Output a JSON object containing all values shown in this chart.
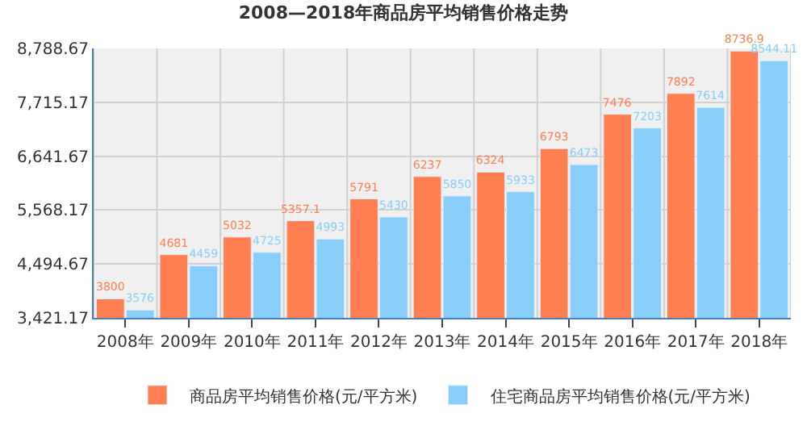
{
  "chart_data": {
    "type": "bar",
    "title": "2008—2018年商品房平均销售价格走势",
    "categories": [
      "2008年",
      "2009年",
      "2010年",
      "2011年",
      "2012年",
      "2013年",
      "2014年",
      "2015年",
      "2016年",
      "2017年",
      "2018年"
    ],
    "series": [
      {
        "name": "商品房平均销售价格(元/平方米)",
        "color": "#ff7f50",
        "values": [
          3800,
          4681,
          5032,
          5357.1,
          5791,
          6237,
          6324,
          6793,
          7476,
          7892,
          8736.9
        ]
      },
      {
        "name": "住宅商品房平均销售价格(元/平方米)",
        "color": "#87cefa",
        "values": [
          3576,
          4459,
          4725,
          4993,
          5430,
          5850,
          5933,
          6473,
          7203,
          7614,
          8544.11
        ]
      }
    ],
    "ylim": [
      3421.17,
      8788.67
    ],
    "yticks": [
      {
        "value": 3421.17,
        "label": "3,421.17"
      },
      {
        "value": 4494.67,
        "label": "4,494.67"
      },
      {
        "value": 5568.17,
        "label": "5,568.17"
      },
      {
        "value": 6641.67,
        "label": "6,641.67"
      },
      {
        "value": 7715.17,
        "label": "7,715.17"
      },
      {
        "value": 8788.67,
        "label": "8,788.67"
      }
    ],
    "grid": true,
    "legend": "bottom",
    "data_labels": true
  }
}
